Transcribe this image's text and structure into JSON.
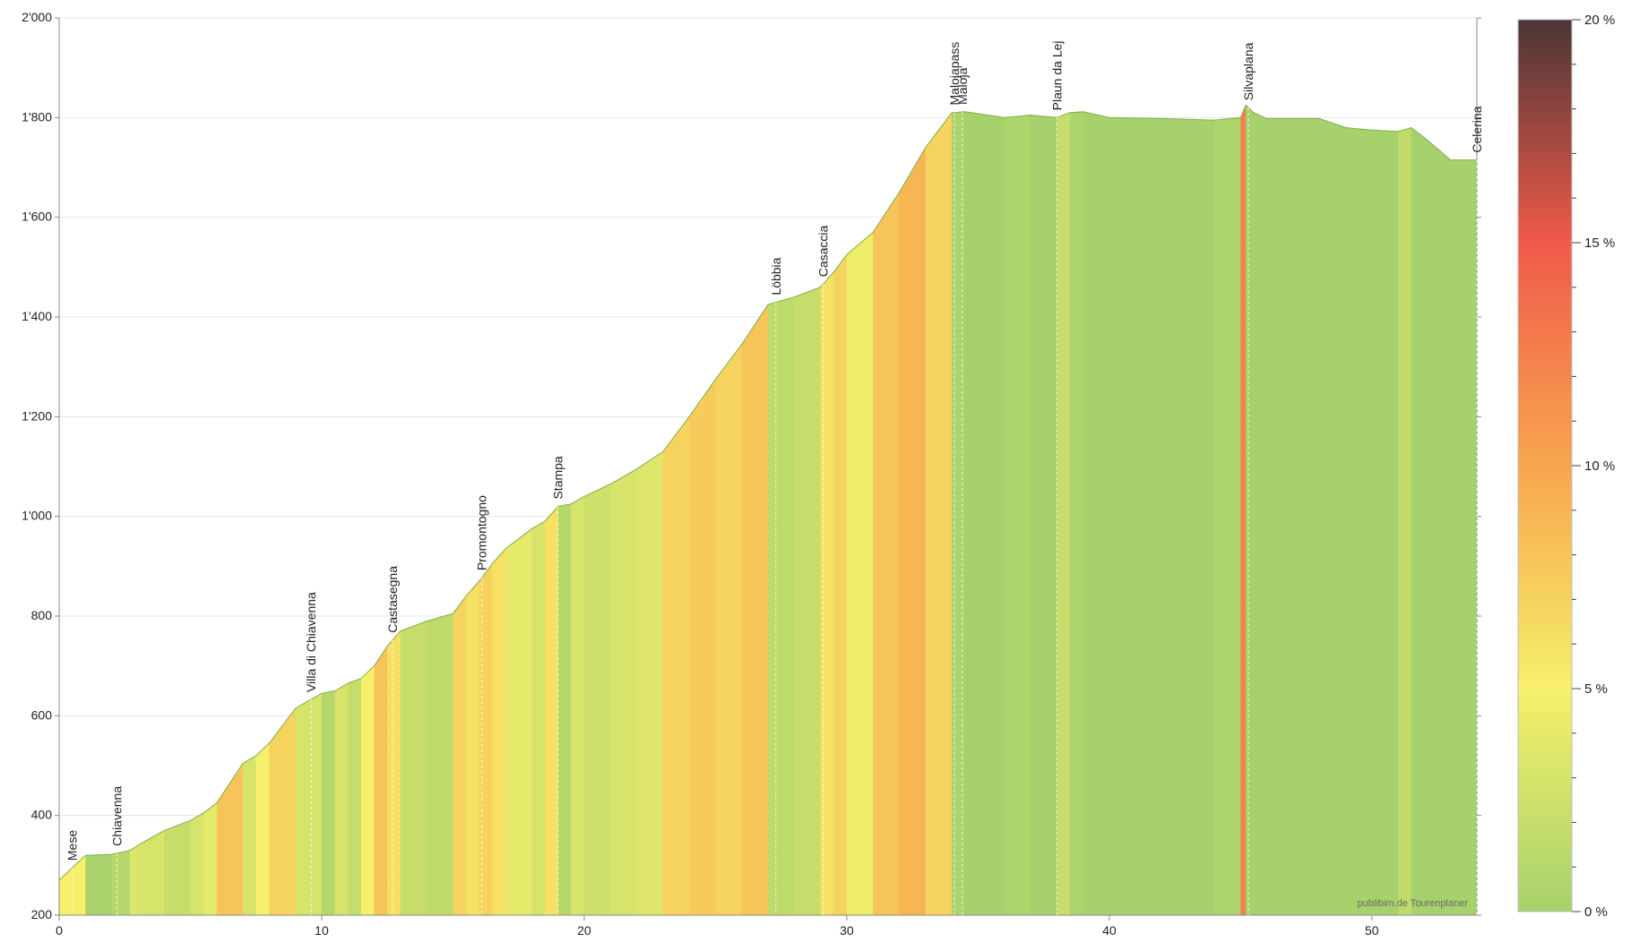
{
  "chart_data": {
    "type": "area",
    "title": "",
    "xlabel": "",
    "ylabel": "",
    "xlim": [
      0,
      54
    ],
    "ylim": [
      200,
      2000
    ],
    "x_ticks": [
      0,
      10,
      20,
      30,
      40,
      50
    ],
    "x_tick_labels": [
      "0",
      "10",
      "20",
      "30",
      "40",
      "50"
    ],
    "y_ticks": [
      200,
      400,
      600,
      800,
      1000,
      1200,
      1400,
      1600,
      1800,
      2000
    ],
    "y_tick_labels": [
      "200",
      "400",
      "600",
      "800",
      "1'000",
      "1'200",
      "1'400",
      "1'600",
      "1'800",
      "2'000"
    ],
    "grid": "horizontal",
    "series": [
      {
        "x": [
          0,
          0.5,
          1,
          2,
          2.7,
          3,
          3.5,
          4,
          4.5,
          5,
          5.5,
          6,
          7,
          7.5,
          8,
          8.5,
          9,
          9.5,
          10,
          10.5,
          11,
          11.5,
          12,
          12.5,
          13,
          14,
          15,
          15.5,
          16,
          16.5,
          17,
          18,
          18.5,
          19,
          19.5,
          20,
          21,
          22,
          23,
          24,
          25,
          26,
          27,
          28,
          28.5,
          29,
          29.5,
          30,
          31,
          32,
          33,
          34,
          34.5,
          35,
          36,
          37,
          38,
          38.5,
          39,
          40,
          42,
          44,
          45,
          45.2,
          45.5,
          46,
          48,
          49,
          50,
          51,
          51.5,
          52,
          53,
          54
        ],
        "y": [
          270,
          295,
          320,
          322,
          330,
          340,
          355,
          370,
          380,
          390,
          405,
          425,
          505,
          520,
          545,
          580,
          615,
          630,
          645,
          650,
          665,
          675,
          700,
          740,
          770,
          790,
          805,
          840,
          870,
          905,
          935,
          975,
          990,
          1020,
          1025,
          1040,
          1065,
          1095,
          1130,
          1200,
          1275,
          1345,
          1425,
          1440,
          1450,
          1460,
          1490,
          1525,
          1570,
          1650,
          1740,
          1810,
          1812,
          1808,
          1800,
          1805,
          1800,
          1810,
          1812,
          1800,
          1798,
          1795,
          1800,
          1825,
          1810,
          1798,
          1798,
          1780,
          1775,
          1772,
          1780,
          1760,
          1715,
          1715
        ]
      }
    ],
    "colorbar": {
      "min": 0,
      "max": 20,
      "ticks": [
        0,
        5,
        10,
        15,
        20
      ],
      "tick_labels": [
        "0 %",
        "5 %",
        "10 %",
        "15 %",
        "20 %"
      ],
      "colors": [
        "#a6d16c",
        "#f6f06a",
        "#f7a64e",
        "#f05a4a",
        "#4a3636"
      ]
    },
    "annotations": [
      {
        "x": 0.5,
        "label": "Mese"
      },
      {
        "x": 2.2,
        "label": "Chiavenna"
      },
      {
        "x": 9.6,
        "label": "Villa di Chiavenna"
      },
      {
        "x": 12.7,
        "label": "Castasegna"
      },
      {
        "x": 16.1,
        "label": "Promontogno"
      },
      {
        "x": 19.0,
        "label": "Stampa"
      },
      {
        "x": 27.3,
        "label": "Löbbia"
      },
      {
        "x": 29.1,
        "label": "Casaccia"
      },
      {
        "x": 34.1,
        "label": "Malojapass"
      },
      {
        "x": 34.4,
        "label": "Maloja"
      },
      {
        "x": 38.0,
        "label": "Plaun da Lej"
      },
      {
        "x": 45.3,
        "label": "Silvaplana"
      },
      {
        "x": 54.0,
        "label": "Celerina"
      }
    ],
    "watermark": "publibim.de Tourenplaner"
  }
}
